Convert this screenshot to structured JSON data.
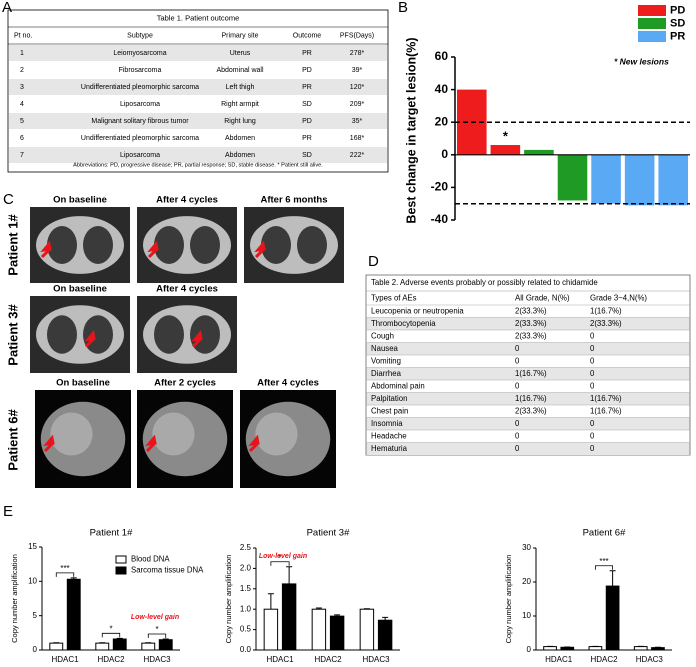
{
  "panel_labels": [
    "A",
    "B",
    "C",
    "D",
    "E"
  ],
  "table1": {
    "title": "Table 1. Patient outcome",
    "columns": [
      "Pt no.",
      "Subtype",
      "Primary site",
      "Outcome",
      "PFS(Days)"
    ],
    "rows": [
      [
        "1",
        "Leiomyosarcoma",
        "Uterus",
        "PR",
        "278*"
      ],
      [
        "2",
        "Fibrosarcoma",
        "Abdominal wall",
        "PD",
        "39*"
      ],
      [
        "3",
        "Undifferentiated pleomorphic sarcoma",
        "Left thigh",
        "PR",
        "120*"
      ],
      [
        "4",
        "Liposarcoma",
        "Right armpit",
        "SD",
        "209*"
      ],
      [
        "5",
        "Malignant solitary fibrous tumor",
        "Right lung",
        "PD",
        "35*"
      ],
      [
        "6",
        "Undifferentiated pleomorphic sarcoma",
        "Abdomen",
        "PR",
        "168*"
      ],
      [
        "7",
        "Liposarcoma",
        "Abdomen",
        "SD",
        "222*"
      ]
    ],
    "footnote": "Abbreviations: PD, progressive disease; PR, partial response; SD, stable disease.    * Patient still alive."
  },
  "ct_images": [
    {
      "patient": "Patient 1#",
      "timepoints": [
        "On baseline",
        "After 4 cycles",
        "After 6 months"
      ]
    },
    {
      "patient": "Patient 3#",
      "timepoints": [
        "On baseline",
        "After 4 cycles"
      ]
    },
    {
      "patient": "Patient 6#",
      "timepoints": [
        "On baseline",
        "After 2 cycles",
        "After 4 cycles"
      ]
    }
  ],
  "table2": {
    "title": "Table 2. Adverse events probably or possibly related to chidamide",
    "columns": [
      "Types of AEs",
      "All Grade, N(%)",
      "Grade 3~4,N(%)"
    ],
    "rows": [
      [
        "Leucopenia or neutropenia",
        "2(33.3%)",
        "1(16.7%)"
      ],
      [
        "Thrombocytopenia",
        "2(33.3%)",
        "2(33.3%)"
      ],
      [
        "Cough",
        "2(33.3%)",
        "0"
      ],
      [
        "Nausea",
        "0",
        "0"
      ],
      [
        "Vomiting",
        "0",
        "0"
      ],
      [
        "Diarrhea",
        "1(16.7%)",
        "0"
      ],
      [
        "Abdominal pain",
        "0",
        "0"
      ],
      [
        "Palpitation",
        "1(16.7%)",
        "1(16.7%)"
      ],
      [
        "Chest pain",
        "2(33.3%)",
        "1(16.7%)"
      ],
      [
        "Insomnia",
        "0",
        "0"
      ],
      [
        "Headache",
        "0",
        "0"
      ],
      [
        "Hematuria",
        "0",
        "0"
      ]
    ]
  },
  "chart_data": [
    {
      "type": "waterfall",
      "ylabel": "Best change in target lesion(%)",
      "values": [
        40,
        6,
        3,
        -28,
        -30,
        -31,
        -31
      ],
      "colors": [
        "#ee1c1c",
        "#ee1c1c",
        "#1e9a25",
        "#1e9a25",
        "#5aa9f5",
        "#5aa9f5",
        "#5aa9f5"
      ],
      "markers": [
        null,
        "*",
        null,
        null,
        null,
        null,
        null
      ],
      "legend": [
        {
          "name": "PD",
          "color": "#ee1c1c"
        },
        {
          "name": "SD",
          "color": "#1e9a25"
        },
        {
          "name": "PR",
          "color": "#5aa9f5"
        }
      ],
      "legend_note": "* New lesions",
      "hlines": [
        20,
        -30
      ],
      "ylim": [
        -40,
        60
      ],
      "yticks": [
        -40,
        -20,
        0,
        20,
        40,
        60
      ]
    },
    {
      "type": "bar",
      "title": "Patient 1#",
      "ylabel": "Copy number amplification",
      "categories": [
        "HDAC1",
        "HDAC2",
        "HDAC3"
      ],
      "series": [
        {
          "name": "Blood DNA",
          "color": "#ffffff",
          "values": [
            1,
            1,
            1
          ],
          "errors": [
            0.05,
            0.05,
            0.05
          ]
        },
        {
          "name": "Sarcoma tissue DNA",
          "color": "#000000",
          "values": [
            10.3,
            1.6,
            1.5
          ],
          "errors": [
            0.2,
            0.1,
            0.1
          ]
        }
      ],
      "significance": [
        "***",
        "*",
        "*"
      ],
      "annotation": "Low-level gain",
      "ylim": [
        0,
        15
      ],
      "yticks": [
        0,
        5,
        10,
        15
      ]
    },
    {
      "type": "bar",
      "title": "Patient 3#",
      "ylabel": "Copy number amplification",
      "categories": [
        "HDAC1",
        "HDAC2",
        "HDAC3"
      ],
      "series": [
        {
          "color": "#ffffff",
          "values": [
            1.0,
            1.0,
            1.0
          ],
          "errors": [
            0.38,
            0.03,
            0.01
          ]
        },
        {
          "color": "#000000",
          "values": [
            1.62,
            0.83,
            0.73
          ],
          "errors": [
            0.42,
            0.03,
            0.07
          ]
        }
      ],
      "significance": [
        "*",
        null,
        null
      ],
      "annotation": "Low-level gain",
      "ylim": [
        0,
        2.5
      ],
      "yticks": [
        {
          "value": 0,
          "label": "0.0"
        },
        0.5,
        {
          "value": 1,
          "label": "1.0"
        },
        1.5,
        {
          "value": 2,
          "label": "2.0"
        },
        2.5
      ]
    },
    {
      "type": "bar",
      "title": "Patient 6#",
      "ylabel": "Copy number amplification",
      "categories": [
        "HDAC1",
        "HDAC2",
        "HDAC3"
      ],
      "series": [
        {
          "color": "#ffffff",
          "values": [
            1,
            1,
            1
          ],
          "errors": [
            0.05,
            0.05,
            0.05
          ]
        },
        {
          "color": "#000000",
          "values": [
            0.8,
            18.8,
            0.7
          ],
          "errors": [
            0.1,
            4.5,
            0.1
          ]
        }
      ],
      "significance": [
        null,
        "***",
        null
      ],
      "ylim": [
        0,
        30
      ],
      "yticks": [
        0,
        10,
        20,
        30
      ]
    }
  ]
}
